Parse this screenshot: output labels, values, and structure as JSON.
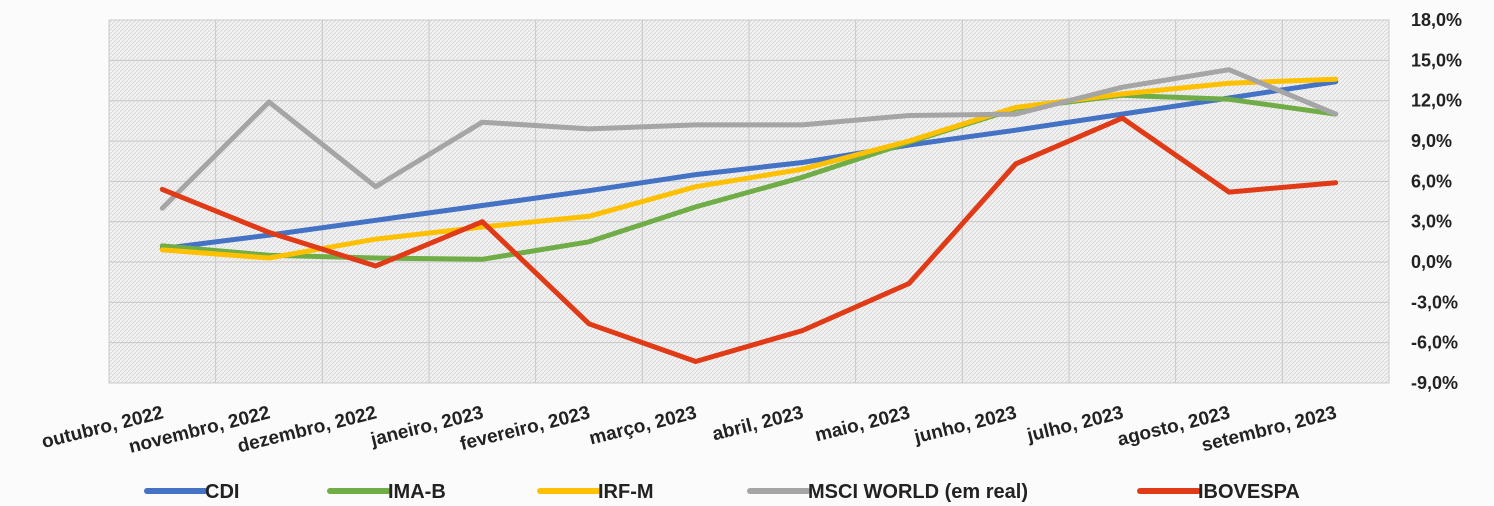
{
  "chart_data": {
    "type": "line",
    "title": "",
    "xlabel": "",
    "ylabel": "",
    "categories": [
      "outubro, 2022",
      "novembro, 2022",
      "dezembro, 2022",
      "janeiro, 2023",
      "fevereiro, 2023",
      "março, 2023",
      "abril, 2023",
      "maio, 2023",
      "junho, 2023",
      "julho, 2023",
      "agosto, 2023",
      "setembro, 2023"
    ],
    "ylim": [
      -9,
      18
    ],
    "yticks": [
      18,
      15,
      12,
      9,
      6,
      3,
      0,
      -3,
      -6,
      -9
    ],
    "ytick_labels": [
      "18,0%",
      "15,0%",
      "12,0%",
      "9,0%",
      "6,0%",
      "3,0%",
      "0,0%",
      "-3,0%",
      "-6,0%",
      "-9,0%"
    ],
    "grid": true,
    "legend_position": "bottom",
    "series": [
      {
        "name": "CDI",
        "color": "#4472C4",
        "values": [
          1.0,
          2.0,
          3.1,
          4.2,
          5.3,
          6.5,
          7.4,
          8.7,
          9.8,
          11.0,
          12.2,
          13.4
        ]
      },
      {
        "name": "IMA-B",
        "color": "#70AD47",
        "values": [
          1.2,
          0.5,
          0.3,
          0.2,
          1.5,
          4.1,
          6.3,
          8.9,
          11.4,
          12.4,
          12.1,
          11.0
        ]
      },
      {
        "name": "IRF-M",
        "color": "#FFC000",
        "values": [
          0.9,
          0.3,
          1.7,
          2.6,
          3.4,
          5.6,
          6.9,
          9.0,
          11.5,
          12.5,
          13.3,
          13.6
        ]
      },
      {
        "name": "MSCI WORLD (em real)",
        "color": "#A5A5A5",
        "values": [
          4.0,
          11.9,
          5.6,
          10.4,
          9.9,
          10.2,
          10.2,
          10.9,
          11.0,
          13.0,
          14.3,
          11.0
        ]
      },
      {
        "name": "IBOVESPA",
        "color": "#E03A16",
        "values": [
          5.4,
          2.2,
          -0.3,
          3.0,
          -4.6,
          -7.4,
          -5.1,
          -1.6,
          7.3,
          10.7,
          5.2,
          5.9
        ]
      }
    ]
  }
}
